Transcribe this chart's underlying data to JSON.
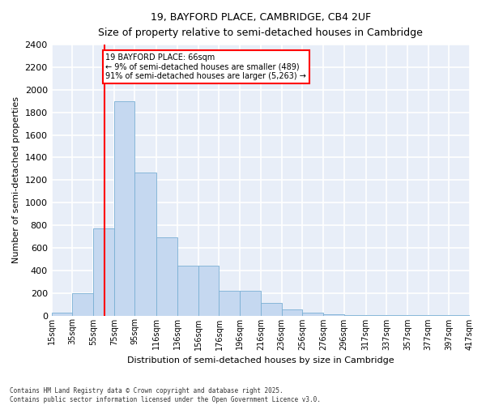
{
  "title": "19, BAYFORD PLACE, CAMBRIDGE, CB4 2UF",
  "subtitle": "Size of property relative to semi-detached houses in Cambridge",
  "xlabel": "Distribution of semi-detached houses by size in Cambridge",
  "ylabel": "Number of semi-detached properties",
  "bar_color": "#c5d8f0",
  "bar_edge_color": "#7aafd4",
  "background_color": "#e8eef8",
  "grid_color": "#ffffff",
  "vline_x": 66,
  "vline_color": "red",
  "annotation_text": "19 BAYFORD PLACE: 66sqm\n← 9% of semi-detached houses are smaller (489)\n91% of semi-detached houses are larger (5,263) →",
  "annotation_box_color": "white",
  "annotation_box_edge_color": "red",
  "bins": [
    15,
    35,
    55,
    75,
    95,
    116,
    136,
    156,
    176,
    196,
    216,
    236,
    256,
    276,
    296,
    317,
    337,
    357,
    377,
    397,
    417
  ],
  "bin_labels": [
    "15sqm",
    "35sqm",
    "55sqm",
    "75sqm",
    "95sqm",
    "116sqm",
    "136sqm",
    "156sqm",
    "176sqm",
    "196sqm",
    "216sqm",
    "236sqm",
    "256sqm",
    "276sqm",
    "296sqm",
    "317sqm",
    "337sqm",
    "357sqm",
    "377sqm",
    "397sqm",
    "417sqm"
  ],
  "counts": [
    25,
    200,
    775,
    1900,
    1270,
    690,
    440,
    440,
    220,
    220,
    110,
    55,
    25,
    10,
    5,
    5,
    5,
    5,
    5,
    5
  ],
  "ylim": [
    0,
    2400
  ],
  "yticks": [
    0,
    200,
    400,
    600,
    800,
    1000,
    1200,
    1400,
    1600,
    1800,
    2000,
    2200,
    2400
  ],
  "footnote": "Contains HM Land Registry data © Crown copyright and database right 2025.\nContains public sector information licensed under the Open Government Licence v3.0."
}
